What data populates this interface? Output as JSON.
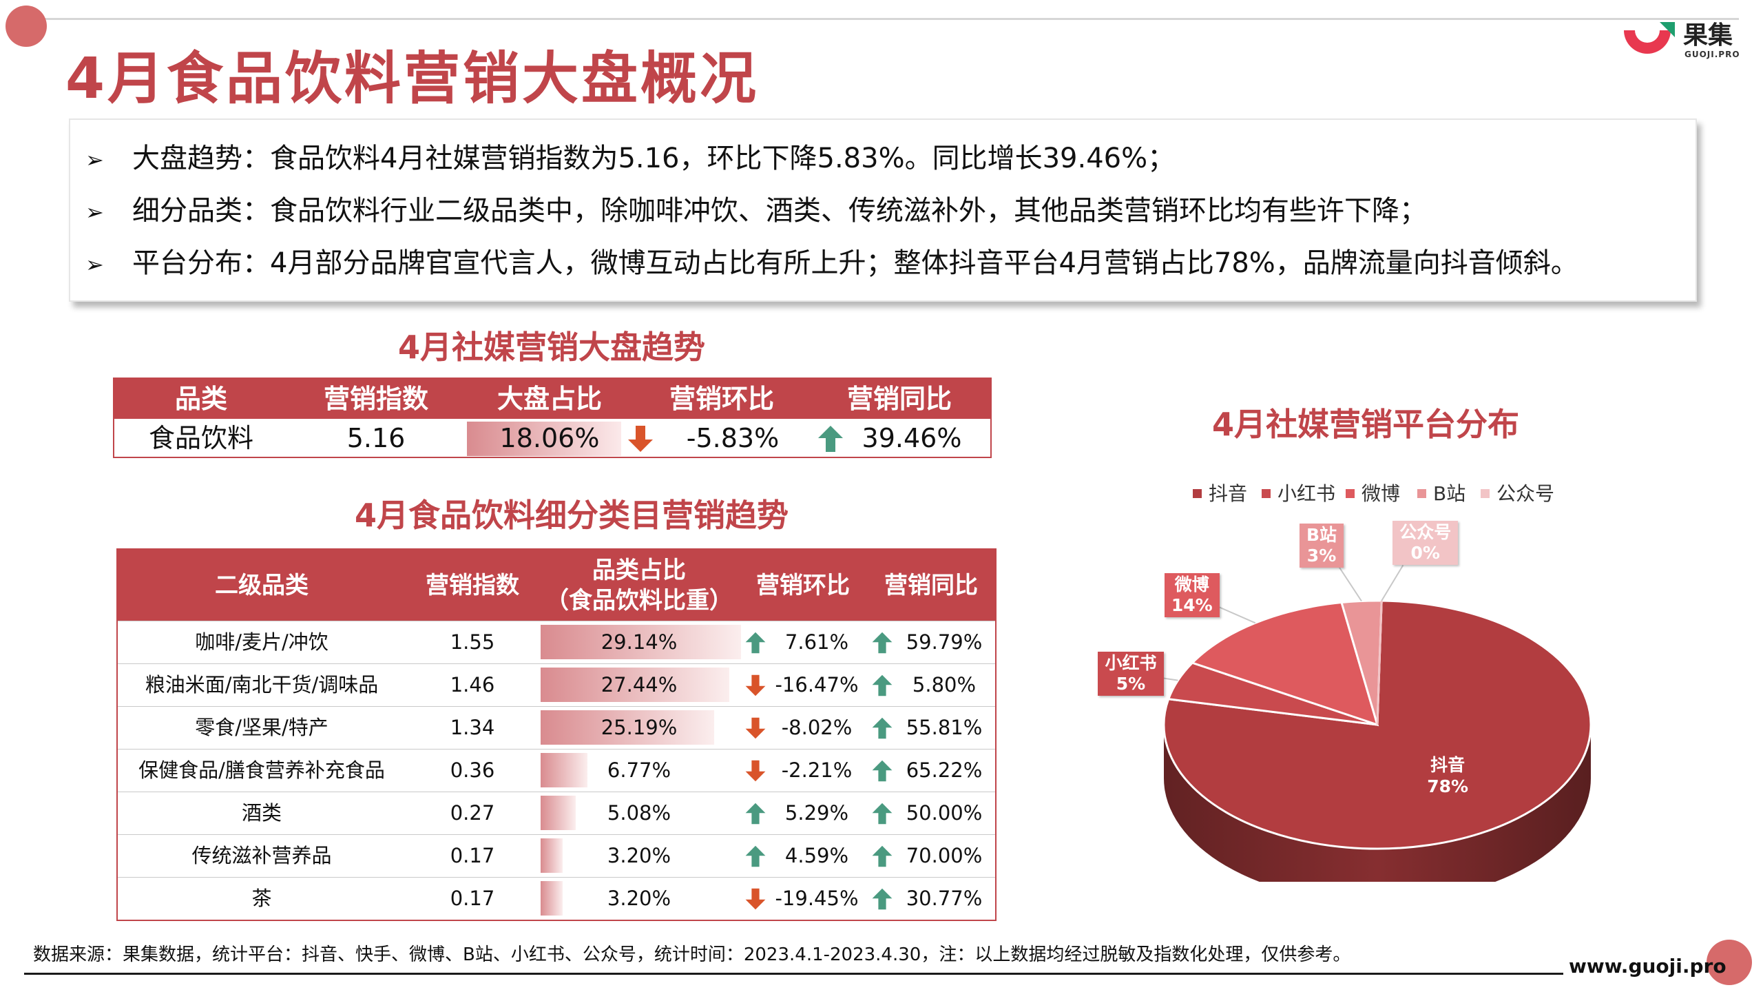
{
  "brand": {
    "name": "果集",
    "sub": "GUOJI.PRO"
  },
  "title": "4月食品饮料营销大盘概况",
  "summary": {
    "arrow_glyph": "➢",
    "bullets": [
      "大盘趋势：食品饮料4月社媒营销指数为5.16，环比下降5.83%。同比增长39.46%；",
      "细分品类：食品饮料行业二级品类中，除咖啡冲饮、酒类、传统滋补外，其他品类营销环比均有些许下降；",
      "平台分布：4月部分品牌官宣代言人，微博互动占比有所上升；整体抖音平台4月营销占比78%，品牌流量向抖音倾斜。"
    ]
  },
  "overview_table": {
    "title": "4月社媒营销大盘趋势",
    "headers": [
      "品类",
      "营销指数",
      "大盘占比",
      "营销环比",
      "营销同比"
    ],
    "row": {
      "category": "食品饮料",
      "index": "5.16",
      "share": "18.06%",
      "mom": "-5.83%",
      "mom_dir": "down",
      "yoy": "39.46%",
      "yoy_dir": "up"
    }
  },
  "detail_table": {
    "title": "4月食品饮料细分类目营销趋势",
    "headers": [
      "二级品类",
      "营销指数",
      "品类占比\n（食品饮料比重）",
      "营销环比",
      "营销同比"
    ],
    "rows": [
      {
        "category": "咖啡/麦片/冲饮",
        "index": "1.55",
        "share": "29.14%",
        "share_value": 29.14,
        "mom": "7.61%",
        "mom_dir": "up",
        "yoy": "59.79%",
        "yoy_dir": "up"
      },
      {
        "category": "粮油米面/南北干货/调味品",
        "index": "1.46",
        "share": "27.44%",
        "share_value": 27.44,
        "mom": "-16.47%",
        "mom_dir": "down",
        "yoy": "5.80%",
        "yoy_dir": "up"
      },
      {
        "category": "零食/坚果/特产",
        "index": "1.34",
        "share": "25.19%",
        "share_value": 25.19,
        "mom": "-8.02%",
        "mom_dir": "down",
        "yoy": "55.81%",
        "yoy_dir": "up"
      },
      {
        "category": "保健食品/膳食营养补充食品",
        "index": "0.36",
        "share": "6.77%",
        "share_value": 6.77,
        "mom": "-2.21%",
        "mom_dir": "down",
        "yoy": "65.22%",
        "yoy_dir": "up"
      },
      {
        "category": "酒类",
        "index": "0.27",
        "share": "5.08%",
        "share_value": 5.08,
        "mom": "5.29%",
        "mom_dir": "up",
        "yoy": "50.00%",
        "yoy_dir": "up"
      },
      {
        "category": "传统滋补营养品",
        "index": "0.17",
        "share": "3.20%",
        "share_value": 3.2,
        "mom": "4.59%",
        "mom_dir": "up",
        "yoy": "70.00%",
        "yoy_dir": "up"
      },
      {
        "category": "茶",
        "index": "0.17",
        "share": "3.20%",
        "share_value": 3.2,
        "mom": "-19.45%",
        "mom_dir": "down",
        "yoy": "30.77%",
        "yoy_dir": "up"
      }
    ]
  },
  "colors": {
    "accent": "#c0454a",
    "up_arrow": "#4a9a80",
    "down_arrow": "#d9542a"
  },
  "chart_data": {
    "type": "pie",
    "title": "4月社媒营销平台分布",
    "legend_position": "top",
    "slices": [
      {
        "name": "抖音",
        "value": 78,
        "label": "78%",
        "color": "#b23d40"
      },
      {
        "name": "小红书",
        "value": 5,
        "label": "5%",
        "color": "#c94a4e"
      },
      {
        "name": "微博",
        "value": 14,
        "label": "14%",
        "color": "#de5a5e"
      },
      {
        "name": "B站",
        "value": 3,
        "label": "3%",
        "color": "#e99597"
      },
      {
        "name": "公众号",
        "value": 0,
        "label": "0%",
        "color": "#f2c4c6"
      }
    ]
  },
  "footer": {
    "source": "数据来源：果集数据，统计平台：抖音、快手、微博、B站、小红书、公众号，统计时间：2023.4.1-2023.4.30，注：以上数据均经过脱敏及指数化处理，仅供参考。",
    "website": "www.guoji.pro"
  }
}
